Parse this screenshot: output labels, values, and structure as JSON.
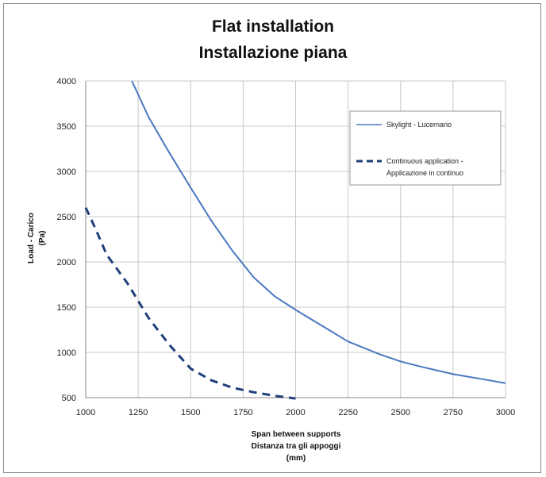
{
  "chart_data": {
    "type": "line",
    "title": [
      "Flat installation",
      "Installazione piana"
    ],
    "xlabel": [
      "Span between supports",
      "Distanza tra gli appoggi",
      "(mm)"
    ],
    "ylabel": [
      "Load - Carico",
      "(Pa)"
    ],
    "xlim": [
      1000,
      3000
    ],
    "ylim": [
      500,
      4000
    ],
    "xticks": [
      "1000",
      "1250",
      "1500",
      "1750",
      "2000",
      "2250",
      "2500",
      "2750",
      "3000"
    ],
    "yticks": [
      "500",
      "1000",
      "1500",
      "2000",
      "2500",
      "3000",
      "3500",
      "4000"
    ],
    "grid": true,
    "legend_position": "top-right",
    "series": [
      {
        "name": [
          "Skylight - Lucernario"
        ],
        "style": "solid",
        "color": "#4a78c0",
        "x": [
          1220,
          1300,
          1400,
          1500,
          1600,
          1700,
          1800,
          1900,
          2000,
          2100,
          2250,
          2400,
          2500,
          2600,
          2750,
          2900,
          3000
        ],
        "y": [
          4000,
          3600,
          3200,
          2820,
          2450,
          2120,
          1830,
          1620,
          1470,
          1330,
          1120,
          980,
          900,
          840,
          760,
          700,
          660
        ]
      },
      {
        "name": [
          "Continuous application -",
          "Applicazione in continuo"
        ],
        "style": "dashed",
        "color": "#1f3f7a",
        "x": [
          1000,
          1050,
          1100,
          1200,
          1300,
          1400,
          1500,
          1600,
          1700,
          1800,
          1900,
          2000
        ],
        "y": [
          2600,
          2350,
          2080,
          1760,
          1380,
          1080,
          820,
          690,
          610,
          560,
          520,
          490
        ]
      }
    ]
  }
}
